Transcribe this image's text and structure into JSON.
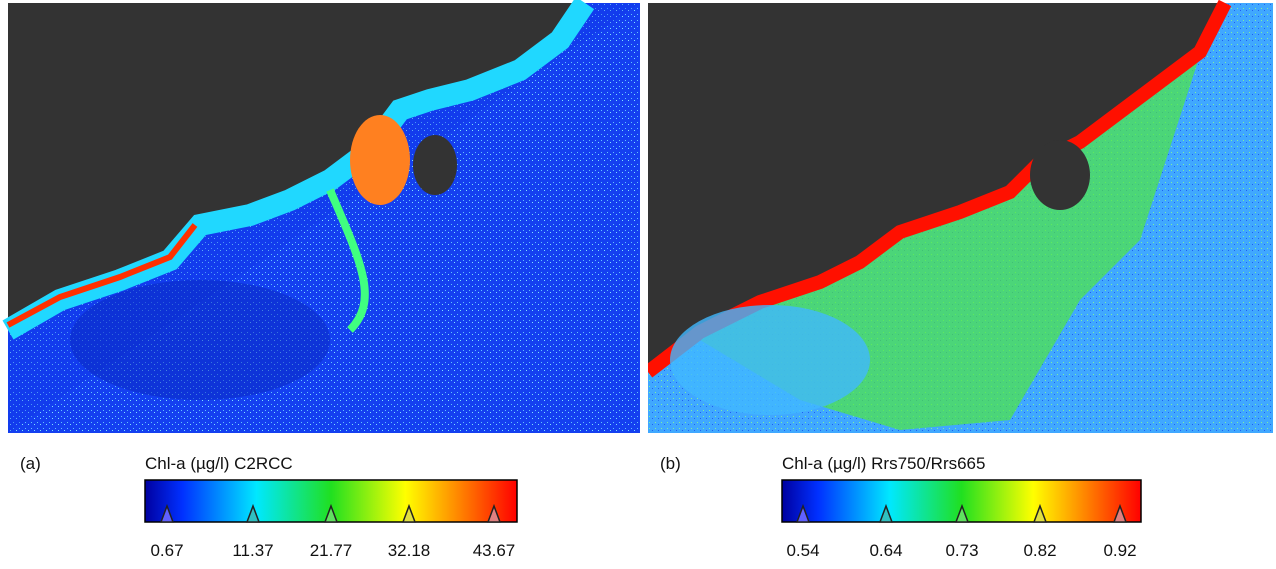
{
  "panels": [
    {
      "label": "(a)",
      "title": "Chl-a (µg/l) C2RCC",
      "ticks": [
        "0.67",
        "11.37",
        "21.77",
        "32.18",
        "43.67"
      ]
    },
    {
      "label": "(b)",
      "title": "Chl-a (µg/l) Rrs750/Rrs665",
      "ticks": [
        "0.54",
        "0.64",
        "0.73",
        "0.82",
        "0.92"
      ]
    }
  ]
}
